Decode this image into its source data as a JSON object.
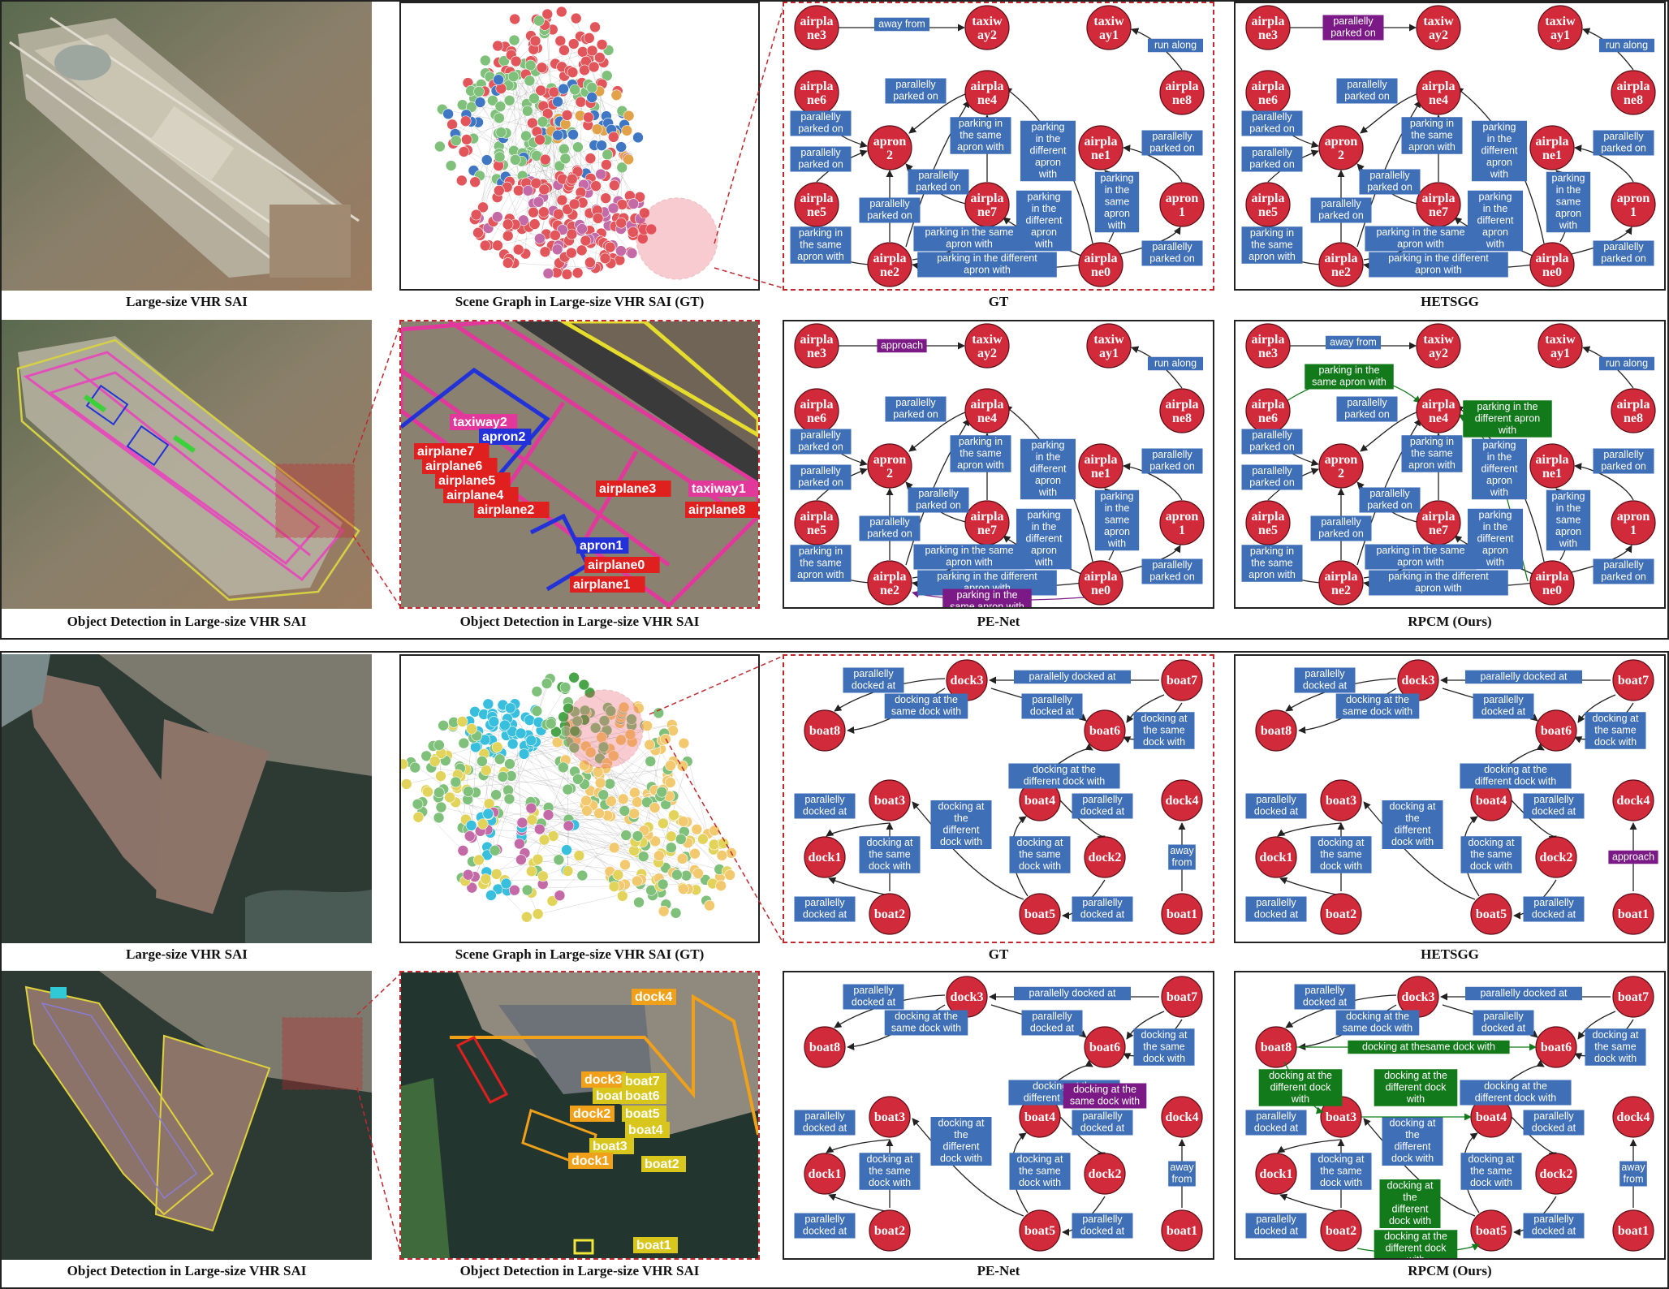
{
  "colors": {
    "node": "#d12b3b",
    "rel_default": "#3f6fb6",
    "rel_purple": "#7b1a86",
    "rel_green": "#137a1b",
    "dashed": "#c0282d"
  },
  "captions": {
    "large_sai": "Large-size VHR SAI",
    "scene_graph_gt": "Scene Graph in Large-size VHR SAI (GT)",
    "gt": "GT",
    "hetsgg": "HETSGG",
    "od_large": "Object Detection in Large-size VHR SAI",
    "pe_net": "PE-Net",
    "rpcm": "RPCM (Ours)"
  },
  "airport": {
    "nodes": {
      "n3": "airpla ne3",
      "t2": "taxiw ay2",
      "t1": "taxiw ay1",
      "n6": "airpla ne6",
      "n4": "airpla ne4",
      "n8": "airpla ne8",
      "a2": "apron 2",
      "n1": "airpla ne1",
      "n5": "airpla ne5",
      "n7": "airpla ne7",
      "a1": "apron 1",
      "n2": "airpla ne2",
      "n0": "airpla ne0"
    },
    "rels": {
      "away_from": "away from",
      "run_along": "run along",
      "par_parked": "parallelly parked on",
      "same_apron_with": "parking in the same apron with",
      "diff_apron_with": "parking in the different apron with",
      "approach": "approach"
    },
    "detections": {
      "taxiway2": "taxiway2",
      "apron2": "apron2",
      "airplane7": "airplane7",
      "airplane6": "airplane6",
      "airplane5": "airplane5",
      "airplane4": "airplane4",
      "airplane2": "airplane2",
      "airplane3": "airplane3",
      "taxiway1": "taxiway1",
      "airplane8": "airplane8",
      "apron1": "apron1",
      "airplane0": "airplane0",
      "airplane1": "airplane1"
    }
  },
  "port": {
    "nodes": {
      "d3": "dock3",
      "b7": "boat7",
      "b8": "boat8",
      "b6": "boat6",
      "b3": "boat3",
      "b4": "boat4",
      "d4": "dock4",
      "d1": "dock1",
      "d2": "dock2",
      "b2": "boat2",
      "b5": "boat5",
      "b1": "boat1"
    },
    "rels": {
      "par_docked": "parallelly docked at",
      "same_dock_with": "docking at the same dock with",
      "diff_dock_with": "docking at the different dock with",
      "away_from": "away from",
      "approach": "approach",
      "thesame_dock_with": "docking at thesame dock with"
    },
    "detections": {
      "dock4": "dock4",
      "dock3": "dock3",
      "boat7": "boat7",
      "boat8": "boat8",
      "boat6": "boat6",
      "dock2": "dock2",
      "boat5": "boat5",
      "boat4": "boat4",
      "boat3": "boat3",
      "dock1": "dock1",
      "boat2": "boat2",
      "boat1": "boat1"
    }
  }
}
